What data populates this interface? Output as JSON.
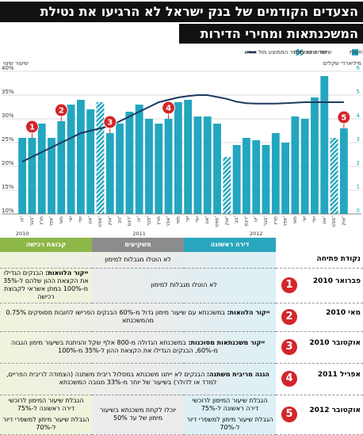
{
  "header": {
    "title_line1": "הצעדים הקודמים של בנק ישראל לא הרגיעו את נטילת",
    "title_line2": "המשכנתאות ומחירי הדירות"
  },
  "chart_data": {
    "type": "bar",
    "y_axis_label": "שיעור שינוי",
    "y2_axis_label": "מיליארדי שקלים",
    "categories": [
      "ינו'",
      "פבר'",
      "מרץ",
      "אפר'",
      "מאי",
      "יוני",
      "יולי",
      "אוג'",
      "ספט'",
      "אוק'",
      "נוב'",
      "דצמ'",
      "ינו'",
      "פבר'",
      "מרץ",
      "אפר'",
      "מאי",
      "יוני",
      "יולי",
      "אוג'",
      "ספט'",
      "אוק'",
      "נוב'",
      "דצמ'",
      "ינו'",
      "פבר'",
      "מרץ",
      "אפר'",
      "מאי",
      "יוני",
      "יולי",
      "אוג'",
      "ספט'",
      "אוק'"
    ],
    "years": [
      "2010",
      "2011",
      "2012"
    ],
    "ylim": [
      10,
      40
    ],
    "yticks": [
      {
        "value": 10,
        "label": "10%"
      },
      {
        "value": 15,
        "label": "15%"
      },
      {
        "value": 20,
        "label": "20%"
      },
      {
        "value": 25,
        "label": "25%"
      },
      {
        "value": 30,
        "label": "30%"
      },
      {
        "value": 35,
        "label": "35%"
      },
      {
        "value": 40,
        "label": "40%"
      }
    ],
    "y2lim": [
      0,
      6
    ],
    "y2ticks": [
      0,
      1,
      2,
      3,
      4,
      5,
      6
    ],
    "grid": true,
    "series": [
      {
        "name": "היקף המשכנתאות",
        "type": "bar",
        "axis": "y2",
        "color": "#23a6bf",
        "values": [
          3.2,
          3.2,
          3.8,
          3.2,
          3.9,
          4.6,
          4.8,
          4.4,
          4.7,
          3.4,
          3.8,
          4.3,
          4.6,
          4.0,
          3.8,
          4.0,
          4.7,
          4.8,
          4.1,
          4.1,
          3.8,
          2.4,
          2.9,
          3.2,
          3.1,
          2.9,
          3.4,
          3.0,
          4.1,
          4.0,
          4.9,
          5.8,
          3.2,
          3.6
        ],
        "highlight": {
          "name": "חודשי הצעדים",
          "indices": [
            8,
            21,
            32
          ]
        }
      },
      {
        "name": "שיעור שינוי במחיר הממוצע מול חודש",
        "type": "line",
        "color": "#1d3a5e",
        "values": [
          21,
          22,
          23,
          24,
          25,
          26,
          27,
          27.5,
          28,
          28.5,
          29.5,
          30.5,
          31.5,
          32.5,
          33.5,
          34,
          34.5,
          34.8,
          35,
          35,
          34.6,
          34.2,
          33.6,
          33.3,
          33.2,
          33.2,
          33.2,
          33.3,
          33.4,
          33.5,
          33.5,
          33.5,
          33.5,
          33.5
        ]
      }
    ],
    "annotations": [
      {
        "text": "1",
        "category": 1
      },
      {
        "text": "2",
        "category": 4
      },
      {
        "text": "3",
        "category": 9
      },
      {
        "text": "4",
        "category": 15
      },
      {
        "text": "5",
        "category": 33
      }
    ],
    "annotation_color": "#d3262b"
  },
  "table": {
    "columns": [
      {
        "name": "דירה ראשונה",
        "color": "#2aa6bf",
        "tint": "#dcf0f5"
      },
      {
        "name": "משקיעים",
        "color": "#8c8c8c",
        "tint": "#ececec"
      },
      {
        "name": "קבוצת רכישה",
        "color": "#8db746",
        "tint": "#eef4dc"
      }
    ],
    "start_label": "נקודת פתיחה",
    "start_text": "לא הוטלו מגבלות למימון",
    "rows": [
      {
        "number": "1",
        "date": "פברואר 2010",
        "cells": [
          {
            "span": 2,
            "text": "לא הוטלו מגבלות למימון"
          },
          {
            "lead": "ייקור הלוואות:",
            "text": "הבנקים הגדילו את הקצאת ההון שלהם ל-35% מ-100% במתן אשראי לקבוצת רכישה"
          }
        ]
      },
      {
        "number": "2",
        "date": "מאי 2010",
        "cells": [
          {
            "span": 3,
            "lead": "ייקור הלוואות:",
            "text": "במשכנתא עם שיעור מימון גדול מ-60% הבנקים הפרישו לחובות מסופקים 0.75% מהמשכנתא"
          }
        ]
      },
      {
        "number": "3",
        "date": "אוקטובר 2010",
        "cells": [
          {
            "span": 3,
            "lead": "ייקור משכנתאות מסוכנות:",
            "text": "במשכנתא הגדולה מ-800 אלף שקל והניתנת בשיעור מימון הגבוה מ-60%, הבנקים הגדילו את הקצאת ההון ל-35% מ-100%"
          }
        ]
      },
      {
        "number": "4",
        "date": "אפריל 2011",
        "cells": [
          {
            "span": 3,
            "lead": "הגנה מריבית משתנה:",
            "text": "הבנקים לא ייתנו משכנתא במסלול ריבית משתנה (הצמודה לריבית הפריים, למדד או לדולר) בשיעור של יותר מ-33% מגובה המשכנתא"
          }
        ]
      },
      {
        "number": "5",
        "date": "אוקטובר 2012",
        "cells": [
          {
            "lines": [
              "הגבלת שיעור המימון לרוכשי דירה ראשונה ל-75%",
              "הגבלת שיעור מימון למשפרי דיור ל-70%"
            ]
          },
          {
            "lines": [
              "יוכלו לקחת משכנתא בשיעור מימון של עד 50%"
            ]
          },
          {
            "lines": [
              "הגבלת שיעור המימון לרוכשי דירה ראשונה ל-75%",
              "הגבלת שיעור מימון למשפרי דיור ל-70%"
            ]
          }
        ]
      }
    ]
  }
}
